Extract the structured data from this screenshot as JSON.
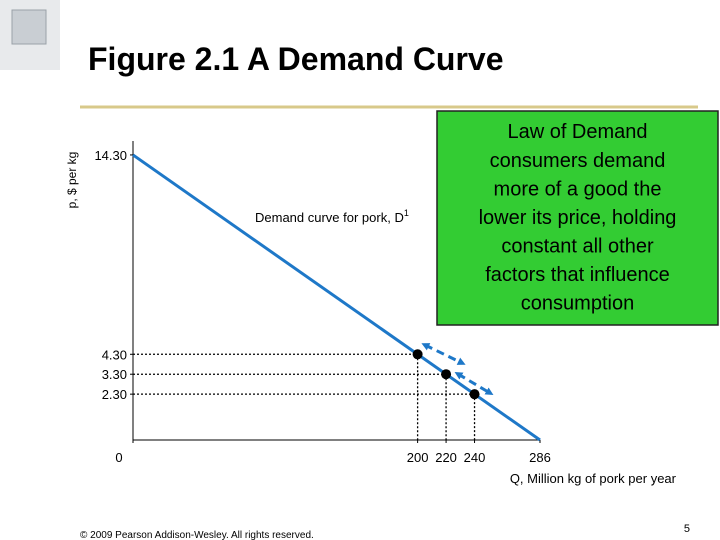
{
  "chart_data": {
    "type": "line",
    "title": "Figure 2.1  A Demand Curve",
    "ylabel": "p, $ per kg",
    "xlabel": "Q, Million kg of pork per year",
    "curve_label": {
      "text": "Demand curve for pork, D",
      "superscript": "1"
    },
    "xlim": [
      0,
      286
    ],
    "ylim": [
      0,
      15
    ],
    "xticks": [
      0,
      200,
      220,
      240,
      286
    ],
    "yticks": [
      {
        "value": 2.3,
        "label": "2.30"
      },
      {
        "value": 3.3,
        "label": "3.30"
      },
      {
        "value": 4.3,
        "label": "4.30"
      },
      {
        "value": 14.3,
        "label": "14.30"
      }
    ],
    "series": [
      {
        "name": "Demand curve for pork, D1",
        "color": "#1e78c8",
        "x": [
          0,
          286
        ],
        "values": [
          14.3,
          0
        ]
      },
      {
        "name": "points",
        "color": "#000000",
        "x": [
          200,
          220,
          240
        ],
        "values": [
          4.3,
          3.3,
          2.3
        ]
      }
    ],
    "callout": {
      "title": "Law of Demand",
      "lines": [
        "consumers demand",
        "more of a good the",
        "lower its price, holding",
        "constant all other",
        "factors that influence",
        "consumption"
      ],
      "color": "#33cc33"
    }
  },
  "slide": {
    "footer": "© 2009 Pearson Addison-Wesley. All rights reserved.",
    "page_number": "5"
  }
}
